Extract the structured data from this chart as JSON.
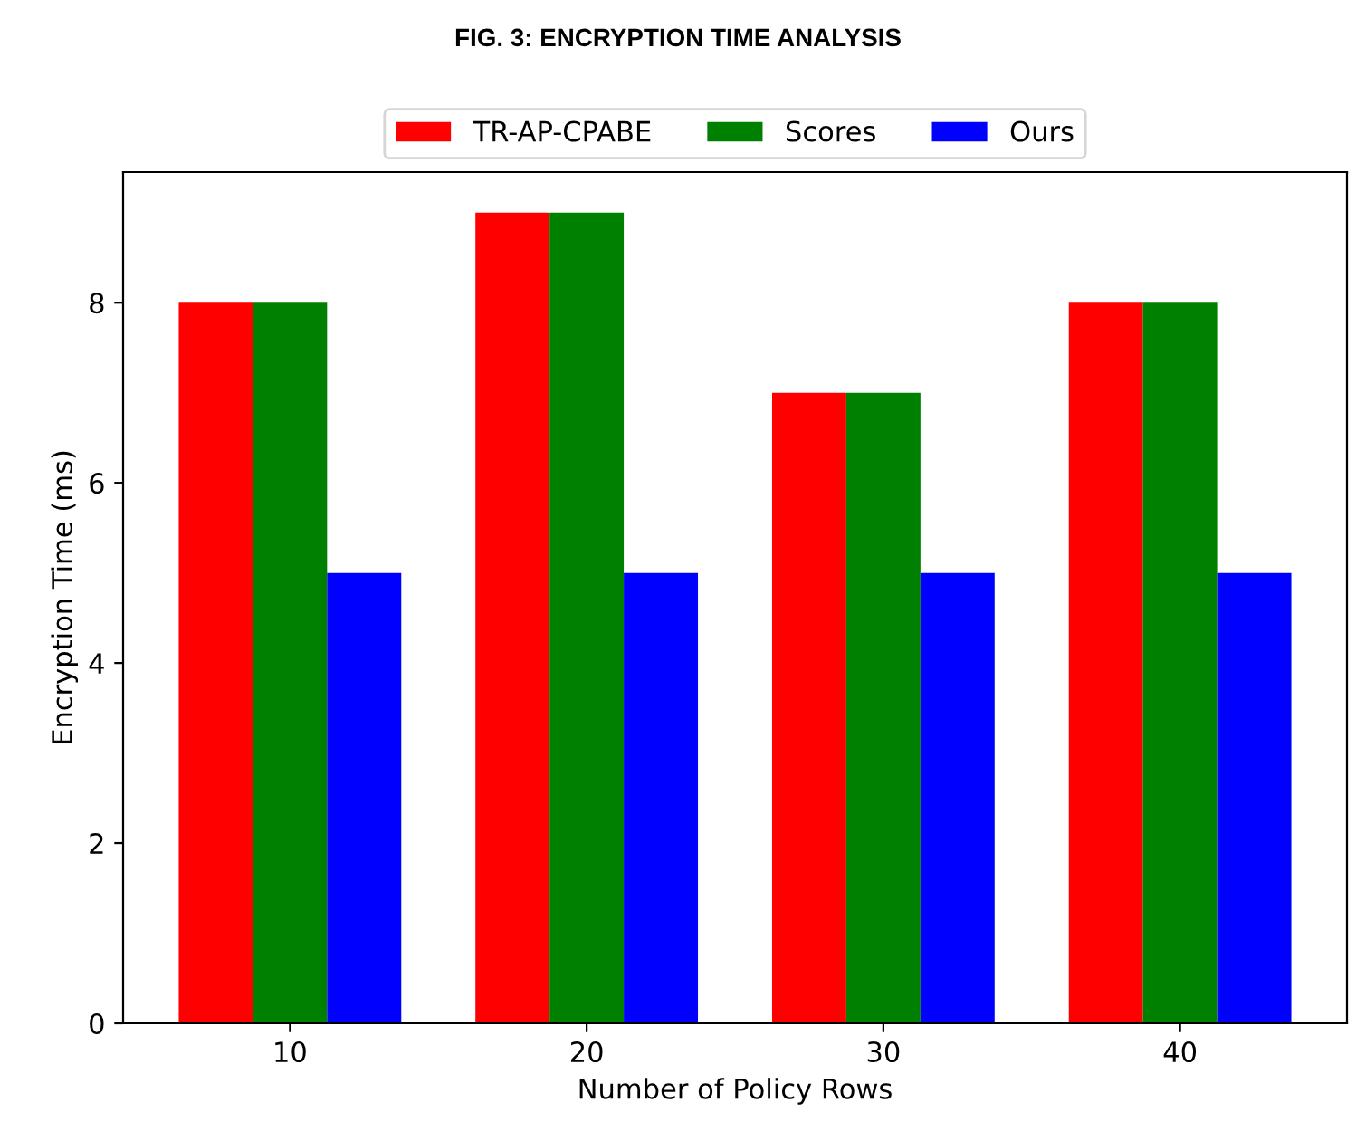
{
  "chart_data": {
    "type": "bar",
    "title": "FIG. 3: ENCRYPTION TIME ANALYSIS",
    "xlabel": "Number of Policy Rows",
    "ylabel": "Encryption Time (ms)",
    "categories": [
      "10",
      "20",
      "30",
      "40"
    ],
    "series": [
      {
        "name": "TR-AP-CPABE",
        "color": "#ff0000",
        "values": [
          8,
          9,
          7,
          8
        ]
      },
      {
        "name": "Scores",
        "color": "#008000",
        "values": [
          8,
          9,
          7,
          8
        ]
      },
      {
        "name": "Ours",
        "color": "#0000ff",
        "values": [
          5,
          5,
          5,
          5
        ]
      }
    ],
    "ylim": [
      0,
      9.45
    ],
    "yticks": [
      0,
      2,
      4,
      6,
      8
    ],
    "grid": false,
    "legend": "top"
  }
}
